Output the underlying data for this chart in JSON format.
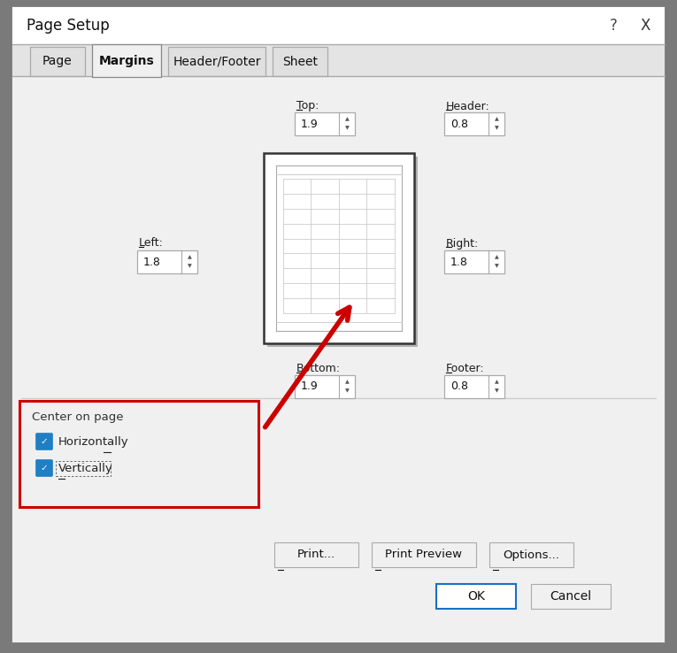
{
  "title": "Page Setup",
  "tabs": [
    "Page",
    "Margins",
    "Header/Footer",
    "Sheet"
  ],
  "active_tab": "Margins",
  "top_label": "Top:",
  "top_value": "1.9",
  "header_label": "Header:",
  "header_value": "0.8",
  "left_label": "Left:",
  "left_value": "1.8",
  "right_label": "Right:",
  "right_value": "1.8",
  "bottom_label": "Bottom:",
  "bottom_value": "1.9",
  "footer_label": "Footer:",
  "footer_value": "0.8",
  "center_on_page_label": "Center on page",
  "checkbox1_label": "Horizontally",
  "checkbox2_label": "Vertically",
  "btn1": "Print...",
  "btn2": "Print Preview",
  "btn3": "Options...",
  "ok_btn": "OK",
  "cancel_btn": "Cancel",
  "help_char": "?",
  "close_char": "X",
  "blue_checkbox": "#1f7fc4",
  "red_arrow": "#cc0000",
  "red_box": "#cc0000",
  "dialog_bg": "#f0f0f0",
  "content_bg": "#f0f0f0",
  "tab_active_bg": "#f0f0f0",
  "tab_inactive_bg": "#e0e0e0",
  "title_bar_bg": "#ffffff",
  "border_dark": "#888888",
  "border_medium": "#aaaaaa",
  "border_light": "#cccccc",
  "text_color": "#1a1a1a",
  "outside_bg": "#7a7a7a"
}
